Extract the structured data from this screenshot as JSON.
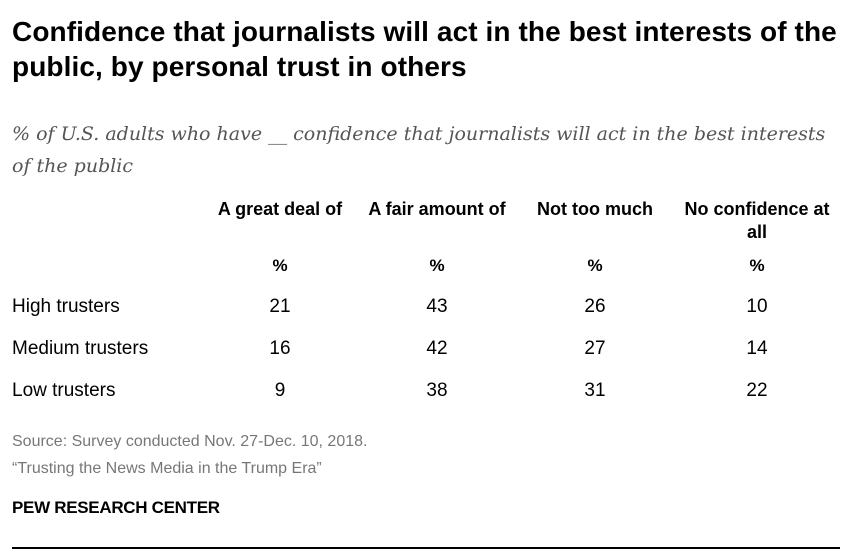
{
  "title": "Confidence that journalists will act in the best interests of the public, by personal trust in others",
  "subtitle": "% of U.S. adults who have __ confidence that journalists will act in the best interests of the public",
  "chart_data": {
    "type": "table",
    "columns": [
      "A great deal of",
      "A fair amount of",
      "Not too much",
      "No confidence at all"
    ],
    "unit_label": "%",
    "rows": [
      {
        "label": "High trusters",
        "values": [
          21,
          43,
          26,
          10
        ]
      },
      {
        "label": "Medium trusters",
        "values": [
          16,
          42,
          27,
          14
        ]
      },
      {
        "label": "Low trusters",
        "values": [
          9,
          38,
          31,
          22
        ]
      }
    ]
  },
  "source": "Source: Survey conducted Nov. 27-Dec. 10, 2018.",
  "report": "“Trusting the News Media in the Trump Era”",
  "logo": "PEW RESEARCH CENTER"
}
